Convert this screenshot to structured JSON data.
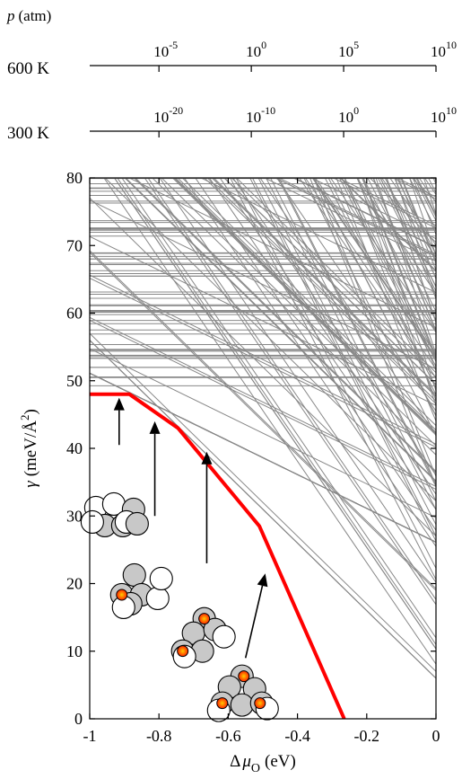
{
  "pressure_scale": {
    "label_symbol": "p",
    "label_unit": "(atm)",
    "rows": [
      {
        "temperature_label": "600 K",
        "ticks": [
          {
            "value": 1e-05,
            "base": "10",
            "exp": "-5"
          },
          {
            "value": 1,
            "base": "10",
            "exp": "0"
          },
          {
            "value": 100000,
            "base": "10",
            "exp": "5"
          },
          {
            "value": 10000000000,
            "base": "10",
            "exp": "10"
          }
        ]
      },
      {
        "temperature_label": "300 K",
        "ticks": [
          {
            "value": 1e-20,
            "base": "10",
            "exp": "-20"
          },
          {
            "value": 1e-10,
            "base": "10",
            "exp": "-10"
          },
          {
            "value": 1,
            "base": "10",
            "exp": "0"
          },
          {
            "value": 10000000000,
            "base": "10",
            "exp": "10"
          }
        ]
      }
    ]
  },
  "chart_data": {
    "type": "line",
    "xlabel_prefix": "Δ",
    "xlabel_symbol": "μ",
    "xlabel_subscript": "O",
    "xlabel_unit": "(eV)",
    "ylabel_symbol": "γ",
    "ylabel_unit_pre": "(meV/Å",
    "ylabel_unit_sup": "2",
    "ylabel_unit_post": ")",
    "xlim": [
      -1,
      0
    ],
    "ylim": [
      0,
      80
    ],
    "x_ticks": [
      -1,
      -0.8,
      -0.6,
      -0.4,
      -0.2,
      0
    ],
    "x_tick_labels": [
      "-1",
      "-0.8",
      "-0.6",
      "-0.4",
      "-0.2",
      "0"
    ],
    "y_ticks": [
      0,
      10,
      20,
      30,
      40,
      50,
      60,
      70,
      80
    ],
    "y_tick_labels": [
      "0",
      "10",
      "20",
      "30",
      "40",
      "50",
      "60",
      "70",
      "80"
    ],
    "grid": false,
    "background_series_color": "#888888",
    "background_series_count": 320,
    "envelope_color": "#ff0000",
    "lower_envelope": {
      "x": [
        -1.0,
        -0.885,
        -0.745,
        -0.51,
        -0.265
      ],
      "y": [
        48.0,
        48.0,
        43.0,
        28.5,
        0.0
      ]
    },
    "structures": [
      {
        "arrow_tip": [
          -0.915,
          47.5
        ],
        "arrow_tail": [
          -0.915,
          40.5
        ],
        "white_atoms": 4,
        "gray_atoms": 4,
        "red_atoms": 0
      },
      {
        "arrow_tip": [
          -0.812,
          44.0
        ],
        "arrow_tail": [
          -0.812,
          30.0
        ],
        "white_atoms": 3,
        "gray_atoms": 4,
        "red_atoms": 1
      },
      {
        "arrow_tip": [
          -0.662,
          39.5
        ],
        "arrow_tail": [
          -0.662,
          23.0
        ],
        "white_atoms": 2,
        "gray_atoms": 4,
        "red_atoms": 2
      },
      {
        "arrow_tip": [
          -0.493,
          21.5
        ],
        "arrow_tail": [
          -0.55,
          9.0
        ],
        "white_atoms": 2,
        "gray_atoms": 5,
        "red_atoms": 3
      }
    ],
    "colors": {
      "gray_atom": "#c8c8c8",
      "red_atom_outer": "#ff2200",
      "red_atom_inner": "#ffaa00",
      "axis": "#000000"
    }
  }
}
